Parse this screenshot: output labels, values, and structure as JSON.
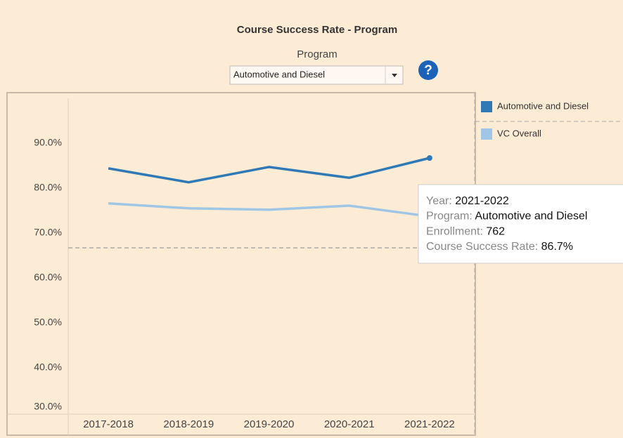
{
  "chart_data": {
    "type": "line",
    "title": "Course Success Rate - Program",
    "categories": [
      "2017-2018",
      "2018-2019",
      "2019-2020",
      "2020-2021",
      "2021-2022"
    ],
    "series": [
      {
        "name": "Automotive and Diesel",
        "color": "#2f79b6",
        "values": [
          84.4,
          81.3,
          84.7,
          82.3,
          86.7
        ]
      },
      {
        "name": "VC Overall",
        "color": "#9fc7e5",
        "values": [
          76.6,
          75.5,
          75.2,
          76.1,
          73.7
        ]
      }
    ],
    "ylim": [
      30,
      100
    ],
    "yticks": [
      {
        "value": 30,
        "label": "30.0%"
      },
      {
        "value": 40,
        "label": "40.0%"
      },
      {
        "value": 50,
        "label": "50.0%"
      },
      {
        "value": 60,
        "label": "60.0%"
      },
      {
        "value": 70,
        "label": "70.0%"
      },
      {
        "value": 80,
        "label": "80.0%"
      },
      {
        "value": 90,
        "label": "90.0%"
      }
    ],
    "reference_line": 66.7,
    "legend": "right"
  },
  "filter": {
    "label": "Program",
    "selected": "Automotive and Diesel"
  },
  "tooltip": {
    "items": [
      {
        "label": "Year:",
        "value": "2021-2022"
      },
      {
        "label": "Program:",
        "value": "Automotive and Diesel"
      },
      {
        "label": "Enrollment:",
        "value": "762"
      },
      {
        "label": "Course Success Rate:",
        "value": "86.7%"
      }
    ]
  }
}
